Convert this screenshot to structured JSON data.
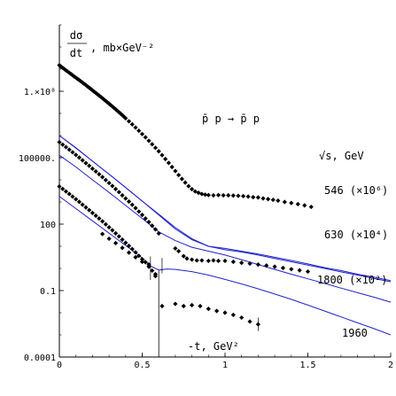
{
  "chart_data": {
    "type": "scatter",
    "title": "",
    "xlabel": "-t, GeV²",
    "ylabel_num": "dσ",
    "ylabel_den": "dt",
    "ylabel_unit": ", mb×GeV⁻²",
    "reaction": "p̄ p → p̄ p",
    "sqrt_s_label": "√s, GeV",
    "y_scale": "log",
    "xlim": [
      0,
      2
    ],
    "ylim": [
      0.0001,
      100000000000
    ],
    "x_ticks": [
      0,
      0.5,
      1,
      1.5,
      2
    ],
    "x_tick_labels": [
      "0",
      "0.5",
      "1",
      "1.5",
      "2"
    ],
    "y_ticks": [
      0.0001,
      0.1,
      100,
      100000,
      100000000
    ],
    "y_tick_labels": [
      "0.0001",
      "0.1",
      "100",
      "100000.",
      "1.×10⁸"
    ],
    "grid": false,
    "series": [
      {
        "name": "546 (×10⁶)",
        "curve": [
          [
            0,
            1000000
          ],
          [
            0.1,
            280000
          ],
          [
            0.2,
            70000
          ],
          [
            0.3,
            18000
          ],
          [
            0.4,
            4500
          ],
          [
            0.5,
            1100
          ],
          [
            0.6,
            280
          ],
          [
            0.7,
            70
          ],
          [
            0.8,
            22
          ],
          [
            0.9,
            10
          ],
          [
            1.0,
            7
          ],
          [
            1.1,
            5.5
          ],
          [
            1.2,
            4
          ],
          [
            1.3,
            2.8
          ],
          [
            1.4,
            2
          ],
          [
            1.5,
            1.4
          ],
          [
            1.6,
            1
          ],
          [
            1.7,
            0.7
          ],
          [
            1.8,
            0.5
          ],
          [
            1.9,
            0.35
          ],
          [
            2.0,
            0.25
          ]
        ],
        "points": [
          [
            0.0,
            1500000000.0
          ],
          [
            0.01,
            1300000000.0
          ],
          [
            0.02,
            1150000000.0
          ],
          [
            0.03,
            1000000000.0
          ],
          [
            0.04,
            880000000.0
          ],
          [
            0.05,
            780000000.0
          ],
          [
            0.06,
            680000000.0
          ],
          [
            0.07,
            600000000.0
          ],
          [
            0.08,
            530000000.0
          ],
          [
            0.09,
            460000000.0
          ],
          [
            0.1,
            410000000.0
          ],
          [
            0.11,
            360000000.0
          ],
          [
            0.12,
            320000000.0
          ],
          [
            0.13,
            280000000.0
          ],
          [
            0.14,
            245000000.0
          ],
          [
            0.15,
            215000000.0
          ],
          [
            0.16,
            190000000.0
          ],
          [
            0.17,
            165000000.0
          ],
          [
            0.18,
            145000000.0
          ],
          [
            0.19,
            127000000.0
          ],
          [
            0.2,
            110000000.0
          ],
          [
            0.21,
            96000000.0
          ],
          [
            0.22,
            84000000.0
          ],
          [
            0.23,
            73000000.0
          ],
          [
            0.24,
            64000000.0
          ],
          [
            0.25,
            56000000.0
          ],
          [
            0.26,
            48500000.0
          ],
          [
            0.27,
            42000000.0
          ],
          [
            0.28,
            36500000.0
          ],
          [
            0.29,
            31500000.0
          ],
          [
            0.3,
            27500000.0
          ],
          [
            0.31,
            23800000.0
          ],
          [
            0.32,
            20500000.0
          ],
          [
            0.33,
            17700000.0
          ],
          [
            0.34,
            15300000.0
          ],
          [
            0.35,
            13100000.0
          ],
          [
            0.36,
            11300000.0
          ],
          [
            0.37,
            9700000.0
          ],
          [
            0.38,
            8300000.0
          ],
          [
            0.39,
            7100000.0
          ],
          [
            0.4,
            6000000.0
          ],
          [
            0.42,
            4400000.0
          ],
          [
            0.44,
            3200000.0
          ],
          [
            0.46,
            2300000.0
          ],
          [
            0.48,
            1650000.0
          ],
          [
            0.5,
            1170000.0
          ],
          [
            0.52,
            830000.0
          ],
          [
            0.54,
            580000.0
          ],
          [
            0.56,
            405000.0
          ],
          [
            0.58,
            280000.0
          ],
          [
            0.6,
            195000.0
          ],
          [
            0.62,
            130000.0
          ],
          [
            0.64,
            87000.0
          ],
          [
            0.66,
            58000.0
          ],
          [
            0.68,
            38000.0
          ],
          [
            0.7,
            25000.0
          ],
          [
            0.72,
            16500.0
          ],
          [
            0.74,
            11000.0
          ],
          [
            0.76,
            7500.0
          ],
          [
            0.78,
            5200.0
          ],
          [
            0.8,
            3800.0
          ],
          [
            0.82,
            3000.0
          ],
          [
            0.84,
            2600.0
          ],
          [
            0.86,
            2300.0
          ],
          [
            0.88,
            2150.0
          ],
          [
            0.9,
            2050.0
          ],
          [
            0.93,
            2000.0
          ],
          [
            0.96,
            2050.0
          ],
          [
            0.99,
            2000.0
          ],
          [
            1.02,
            2000.0
          ],
          [
            1.05,
            1950.0
          ],
          [
            1.08,
            1900.0
          ],
          [
            1.11,
            1850.0
          ],
          [
            1.14,
            1750.0
          ],
          [
            1.17,
            1650.0
          ],
          [
            1.2,
            1600.0
          ],
          [
            1.23,
            1450.0
          ],
          [
            1.26,
            1350.0
          ],
          [
            1.29,
            1250.0
          ],
          [
            1.32,
            1150.0
          ],
          [
            1.36,
            1000.0
          ],
          [
            1.4,
            900.0
          ],
          [
            1.44,
            800.0
          ],
          [
            1.48,
            700.0
          ],
          [
            1.52,
            600.0
          ]
        ]
      },
      {
        "name": "630 (×10⁴)",
        "curve": [
          [
            0,
            1000000
          ],
          [
            0.1,
            270000
          ],
          [
            0.2,
            70000
          ],
          [
            0.3,
            18000
          ],
          [
            0.4,
            4500
          ],
          [
            0.5,
            1100
          ],
          [
            0.6,
            260
          ],
          [
            0.7,
            60
          ],
          [
            0.8,
            20
          ],
          [
            0.9,
            10
          ],
          [
            1.0,
            8
          ],
          [
            1.1,
            6
          ],
          [
            1.2,
            4.5
          ],
          [
            1.3,
            3.2
          ],
          [
            1.4,
            2.3
          ],
          [
            1.5,
            1.6
          ],
          [
            1.6,
            1.1
          ],
          [
            1.7,
            0.8
          ],
          [
            1.8,
            0.55
          ],
          [
            1.9,
            0.4
          ],
          [
            2.0,
            0.28
          ]
        ],
        "points": [
          [
            0.0,
            500000.0
          ],
          [
            0.02,
            390000.0
          ],
          [
            0.04,
            300000.0
          ],
          [
            0.06,
            230000.0
          ],
          [
            0.08,
            175000.0
          ],
          [
            0.1,
            133000.0
          ],
          [
            0.12,
            101000.0
          ],
          [
            0.14,
            76000.0
          ],
          [
            0.16,
            57000.0
          ],
          [
            0.18,
            43000.0
          ],
          [
            0.2,
            32000.0
          ],
          [
            0.22,
            24000.0
          ],
          [
            0.24,
            18000.0
          ],
          [
            0.26,
            13300.0
          ],
          [
            0.28,
            9800.0
          ],
          [
            0.3,
            7200.0
          ],
          [
            0.32,
            5300.0
          ],
          [
            0.34,
            3850.0
          ],
          [
            0.36,
            2800.0
          ],
          [
            0.38,
            2000.0
          ],
          [
            0.4,
            1450.0
          ],
          [
            0.42,
            1050.0
          ],
          [
            0.44,
            750.0
          ],
          [
            0.46,
            530.0
          ],
          [
            0.48,
            370.0
          ],
          [
            0.5,
            260.0
          ],
          [
            0.52,
            180.0
          ],
          [
            0.54,
            125.0
          ],
          [
            0.56,
            85.0
          ],
          [
            0.58,
            58.0
          ],
          [
            0.6,
            38.0
          ],
          [
            0.7,
            8.0
          ],
          [
            0.72,
            6.0
          ],
          [
            0.75,
            3.6
          ],
          [
            0.77,
            2.8
          ],
          [
            0.8,
            2.5
          ],
          [
            0.83,
            2.3
          ],
          [
            0.86,
            2.3
          ],
          [
            0.9,
            2.2
          ],
          [
            0.93,
            2.3
          ],
          [
            0.96,
            2.2
          ],
          [
            1.0,
            2.2
          ],
          [
            1.05,
            2.0
          ],
          [
            1.1,
            1.8
          ],
          [
            1.15,
            1.65
          ],
          [
            1.2,
            1.5
          ],
          [
            1.25,
            1.35
          ],
          [
            1.3,
            1.2
          ],
          [
            1.35,
            1.05
          ],
          [
            1.4,
            0.92
          ],
          [
            1.45,
            0.82
          ],
          [
            1.5,
            0.72
          ]
        ]
      },
      {
        "name": "1800 (×10²)",
        "curve": [
          [
            0,
            130000
          ],
          [
            0.1,
            38000
          ],
          [
            0.2,
            10000
          ],
          [
            0.3,
            2700
          ],
          [
            0.4,
            700
          ],
          [
            0.5,
            180
          ],
          [
            0.6,
            45
          ],
          [
            0.7,
            18
          ],
          [
            0.8,
            9
          ],
          [
            0.9,
            6
          ],
          [
            1.0,
            4
          ],
          [
            1.1,
            2.5
          ],
          [
            1.2,
            1.5
          ],
          [
            1.3,
            0.9
          ],
          [
            1.4,
            0.55
          ],
          [
            1.5,
            0.34
          ],
          [
            1.6,
            0.21
          ],
          [
            1.7,
            0.13
          ],
          [
            1.8,
            0.08
          ],
          [
            1.9,
            0.05
          ],
          [
            2.0,
            0.03
          ]
        ],
        "points": [
          [
            0.0,
            5000.0
          ],
          [
            0.02,
            3900.0
          ],
          [
            0.04,
            3000.0
          ],
          [
            0.06,
            2300.0
          ],
          [
            0.08,
            1750.0
          ],
          [
            0.1,
            1330.0
          ],
          [
            0.12,
            1010.0
          ],
          [
            0.14,
            760.0
          ],
          [
            0.16,
            570.0
          ],
          [
            0.18,
            430.0
          ],
          [
            0.2,
            320.0
          ],
          [
            0.22,
            240.0
          ],
          [
            0.24,
            180.0
          ],
          [
            0.26,
            133.0
          ],
          [
            0.28,
            98.0
          ],
          [
            0.3,
            72.0
          ],
          [
            0.32,
            53.0
          ],
          [
            0.34,
            38.5
          ],
          [
            0.36,
            28.0
          ],
          [
            0.38,
            20.0
          ],
          [
            0.4,
            14.5
          ],
          [
            0.42,
            10.5
          ],
          [
            0.44,
            7.5
          ],
          [
            0.46,
            5.3
          ],
          [
            0.48,
            3.7
          ],
          [
            0.5,
            2.6
          ],
          [
            0.52,
            1.9
          ],
          [
            0.54,
            1.5
          ],
          [
            0.56,
            0.8
          ],
          [
            0.58,
            0.55
          ]
        ]
      },
      {
        "name": "1960",
        "curve": [
          [
            0,
            1800
          ],
          [
            0.1,
            500
          ],
          [
            0.2,
            140
          ],
          [
            0.3,
            39
          ],
          [
            0.4,
            11
          ],
          [
            0.5,
            3
          ],
          [
            0.55,
            1.3
          ],
          [
            0.6,
            0.85
          ],
          [
            0.65,
            0.95
          ],
          [
            0.7,
            0.9
          ],
          [
            0.8,
            0.72
          ],
          [
            0.9,
            0.5
          ],
          [
            1.0,
            0.32
          ],
          [
            1.1,
            0.2
          ],
          [
            1.2,
            0.12
          ],
          [
            1.3,
            0.07
          ],
          [
            1.4,
            0.04
          ],
          [
            1.5,
            0.022
          ],
          [
            1.6,
            0.012
          ],
          [
            1.7,
            0.0065
          ],
          [
            1.8,
            0.0035
          ],
          [
            1.9,
            0.0019
          ],
          [
            2.0,
            0.001
          ]
        ],
        "points": [
          [
            0.26,
            36
          ],
          [
            0.3,
            22
          ],
          [
            0.34,
            14
          ],
          [
            0.38,
            8.5
          ],
          [
            0.42,
            5.2
          ],
          [
            0.46,
            3.2
          ],
          [
            0.5,
            2.0
          ],
          [
            0.54,
            1.2
          ],
          [
            0.58,
            0.45
          ],
          [
            0.62,
            0.02
          ],
          [
            0.7,
            0.025
          ],
          [
            0.75,
            0.02
          ],
          [
            0.8,
            0.022
          ],
          [
            0.85,
            0.02
          ],
          [
            0.9,
            0.015
          ],
          [
            0.95,
            0.012
          ],
          [
            1.0,
            0.01
          ],
          [
            1.05,
            0.008
          ],
          [
            1.1,
            0.006
          ],
          [
            1.15,
            0.004
          ],
          [
            1.2,
            0.003
          ]
        ]
      }
    ]
  }
}
